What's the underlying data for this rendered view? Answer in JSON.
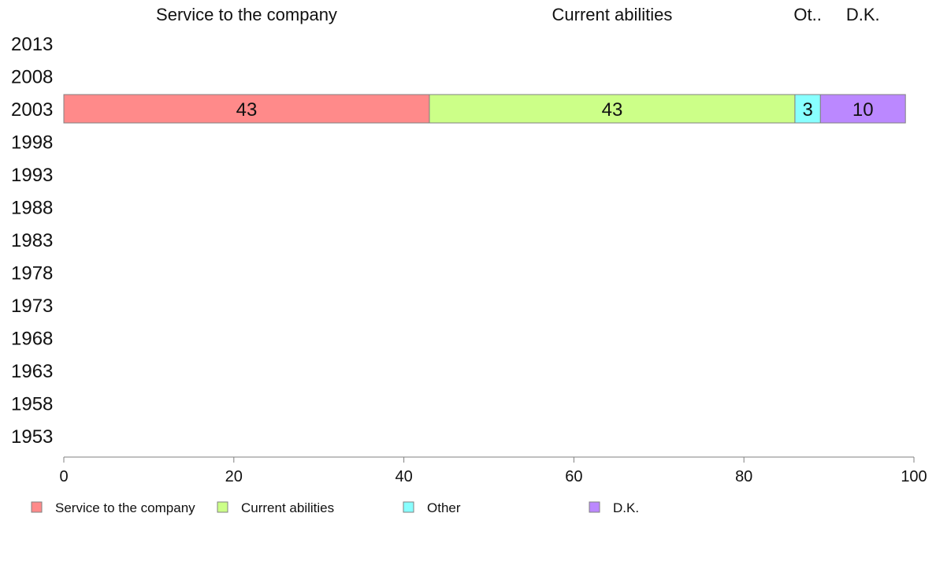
{
  "chart_data": {
    "type": "bar",
    "orientation": "horizontal",
    "stacked": true,
    "categories": [
      "2013",
      "2008",
      "2003",
      "1998",
      "1993",
      "1988",
      "1983",
      "1978",
      "1973",
      "1968",
      "1963",
      "1958",
      "1953"
    ],
    "series": [
      {
        "name": "Service to the company",
        "short_label": "Service to the company",
        "color": "#ff8a8a",
        "values": [
          null,
          null,
          43,
          null,
          null,
          null,
          null,
          null,
          null,
          null,
          null,
          null,
          null
        ]
      },
      {
        "name": "Current abilities",
        "short_label": "Current abilities",
        "color": "#ccff88",
        "values": [
          null,
          null,
          43,
          null,
          null,
          null,
          null,
          null,
          null,
          null,
          null,
          null,
          null
        ]
      },
      {
        "name": "Other",
        "short_label": "Ot..",
        "color": "#88ffff",
        "values": [
          null,
          null,
          3,
          null,
          null,
          null,
          null,
          null,
          null,
          null,
          null,
          null,
          null
        ]
      },
      {
        "name": "D.K.",
        "short_label": "D.K.",
        "color": "#bb88ff",
        "values": [
          null,
          null,
          10,
          null,
          null,
          null,
          null,
          null,
          null,
          null,
          null,
          null,
          null
        ]
      }
    ],
    "xlim": [
      0,
      100
    ],
    "x_ticks": [
      0,
      20,
      40,
      60,
      80,
      100
    ],
    "grid": false,
    "legend_position": "bottom"
  }
}
